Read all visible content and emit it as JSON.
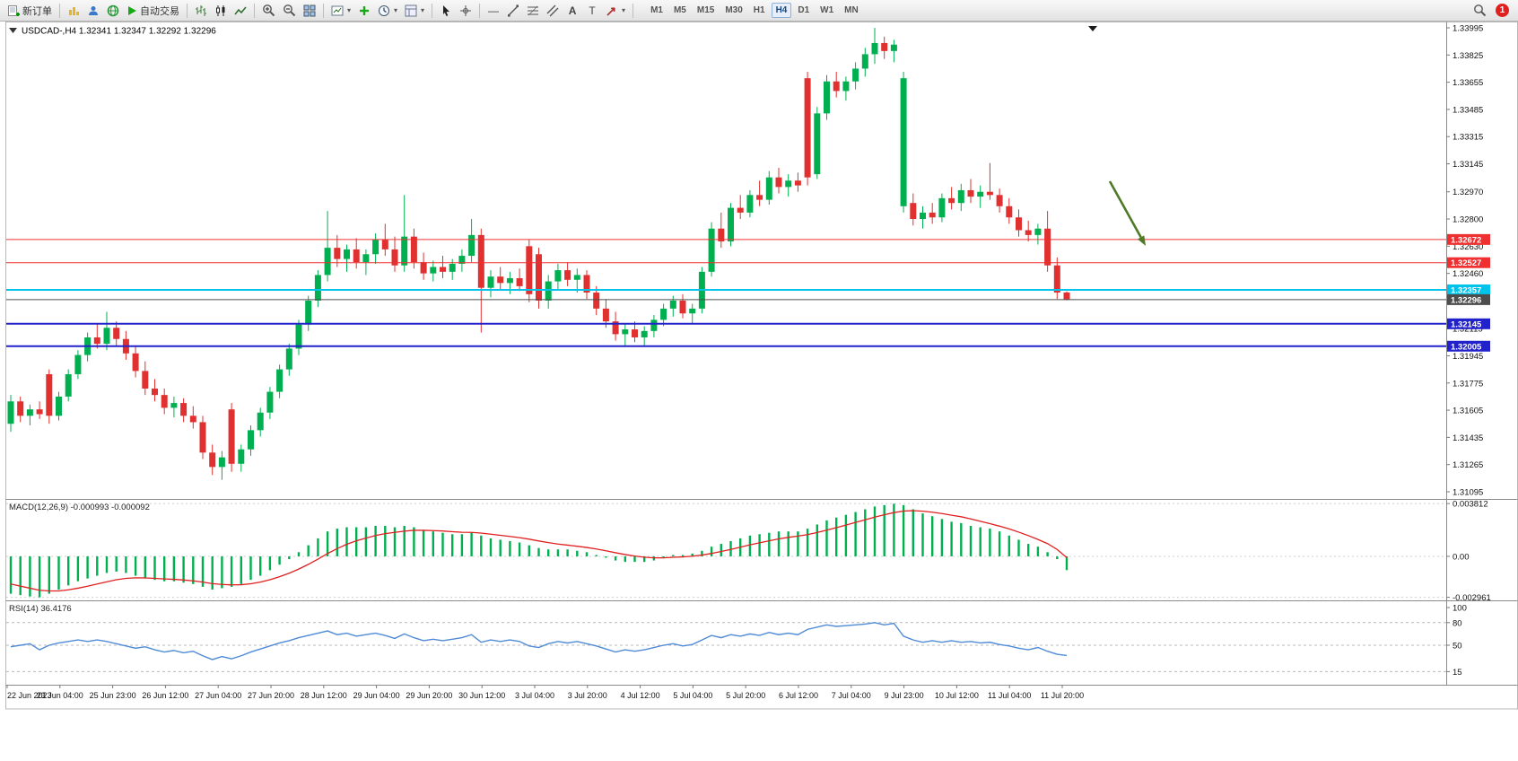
{
  "toolbar": {
    "new_order": "新订单",
    "auto_trading": "自动交易",
    "timeframes": [
      "M1",
      "M5",
      "M15",
      "M30",
      "H1",
      "H4",
      "D1",
      "W1",
      "MN"
    ],
    "active_timeframe": "H4",
    "notification_count": "1"
  },
  "chart_data": [
    {
      "type": "candlestick",
      "symbol": "USDCAD-,H4",
      "ohlc_text": "1.32341 1.32347 1.32292 1.32296",
      "ylim": [
        1.31095,
        1.33995
      ],
      "price_axis": [
        "1.33995",
        "1.33825",
        "1.33655",
        "1.33485",
        "1.33315",
        "1.33145",
        "1.32970",
        "1.32800",
        "1.32630",
        "1.32460",
        "1.32290",
        "1.32115",
        "1.31945",
        "1.31775",
        "1.31605",
        "1.31435",
        "1.31265",
        "1.31095"
      ],
      "hlines": [
        {
          "price": 1.32672,
          "label": "1.32672",
          "color": "#f03030",
          "width": 1
        },
        {
          "price": 1.32527,
          "label": "1.32527",
          "color": "#f03030",
          "width": 1
        },
        {
          "price": 1.32357,
          "label": "1.32357",
          "color": "#00c4ec",
          "width": 2
        },
        {
          "price": 1.32296,
          "label": "1.32296",
          "color": "#4d4d4d",
          "width": 1,
          "is_current_price": true
        },
        {
          "price": 1.32145,
          "label": "1.32145",
          "color": "#2222cc",
          "width": 2
        },
        {
          "price": 1.32005,
          "label": "1.32005",
          "color": "#2222cc",
          "width": 2
        }
      ],
      "colors": {
        "up": "#00b050",
        "down": "#e03030"
      },
      "annotations": [
        {
          "type": "arrow",
          "color": "#4e7a27",
          "from": [
            1237,
            202
          ],
          "to": [
            1277,
            274
          ]
        }
      ],
      "candles": [
        [
          1.3152,
          1.317,
          1.3147,
          1.3166
        ],
        [
          1.3166,
          1.3169,
          1.3153,
          1.3157
        ],
        [
          1.3157,
          1.3164,
          1.3151,
          1.3161
        ],
        [
          1.3161,
          1.3166,
          1.3155,
          1.3158
        ],
        [
          1.3183,
          1.3186,
          1.3152,
          1.3157
        ],
        [
          1.3157,
          1.3172,
          1.3154,
          1.3169
        ],
        [
          1.3169,
          1.3186,
          1.3166,
          1.3183
        ],
        [
          1.3183,
          1.3198,
          1.318,
          1.3195
        ],
        [
          1.3195,
          1.3209,
          1.3191,
          1.3206
        ],
        [
          1.3206,
          1.3215,
          1.3199,
          1.3202
        ],
        [
          1.3202,
          1.3222,
          1.3198,
          1.3212
        ],
        [
          1.3212,
          1.3216,
          1.3201,
          1.3205
        ],
        [
          1.3205,
          1.321,
          1.3192,
          1.3196
        ],
        [
          1.3196,
          1.3201,
          1.3181,
          1.3185
        ],
        [
          1.3185,
          1.3191,
          1.317,
          1.3174
        ],
        [
          1.3174,
          1.318,
          1.3166,
          1.317
        ],
        [
          1.317,
          1.3174,
          1.3158,
          1.3162
        ],
        [
          1.3162,
          1.3169,
          1.3156,
          1.3165
        ],
        [
          1.3165,
          1.3168,
          1.3153,
          1.3157
        ],
        [
          1.3157,
          1.3163,
          1.3149,
          1.3153
        ],
        [
          1.3153,
          1.3157,
          1.313,
          1.3134
        ],
        [
          1.3134,
          1.3139,
          1.312,
          1.3125
        ],
        [
          1.3125,
          1.3135,
          1.3117,
          1.3131
        ],
        [
          1.3161,
          1.3165,
          1.3122,
          1.3127
        ],
        [
          1.3127,
          1.3139,
          1.3122,
          1.3136
        ],
        [
          1.3136,
          1.3151,
          1.3132,
          1.3148
        ],
        [
          1.3148,
          1.3162,
          1.3144,
          1.3159
        ],
        [
          1.3159,
          1.3175,
          1.3155,
          1.3172
        ],
        [
          1.3172,
          1.3189,
          1.3168,
          1.3186
        ],
        [
          1.3186,
          1.3202,
          1.3182,
          1.3199
        ],
        [
          1.3199,
          1.3217,
          1.3195,
          1.3214
        ],
        [
          1.3214,
          1.3232,
          1.321,
          1.3229
        ],
        [
          1.3229,
          1.3248,
          1.3225,
          1.3245
        ],
        [
          1.3245,
          1.3285,
          1.3241,
          1.3262
        ],
        [
          1.3262,
          1.327,
          1.325,
          1.3255
        ],
        [
          1.3255,
          1.3264,
          1.3247,
          1.3261
        ],
        [
          1.3261,
          1.3268,
          1.3249,
          1.3253
        ],
        [
          1.3253,
          1.3261,
          1.3245,
          1.3258
        ],
        [
          1.3258,
          1.3271,
          1.3252,
          1.3267
        ],
        [
          1.3267,
          1.3277,
          1.3257,
          1.3261
        ],
        [
          1.3261,
          1.3269,
          1.3247,
          1.3251
        ],
        [
          1.3251,
          1.3295,
          1.3247,
          1.3269
        ],
        [
          1.3269,
          1.3274,
          1.3249,
          1.3253
        ],
        [
          1.3253,
          1.3259,
          1.3242,
          1.3246
        ],
        [
          1.3246,
          1.3254,
          1.3241,
          1.325
        ],
        [
          1.325,
          1.3257,
          1.3243,
          1.3247
        ],
        [
          1.3247,
          1.3255,
          1.3242,
          1.3252
        ],
        [
          1.3252,
          1.3261,
          1.3247,
          1.3257
        ],
        [
          1.3257,
          1.328,
          1.3253,
          1.327
        ],
        [
          1.327,
          1.3274,
          1.3209,
          1.3237
        ],
        [
          1.3237,
          1.3248,
          1.3231,
          1.3244
        ],
        [
          1.3244,
          1.325,
          1.3236,
          1.324
        ],
        [
          1.324,
          1.3247,
          1.3233,
          1.3243
        ],
        [
          1.3243,
          1.3249,
          1.3235,
          1.3238
        ],
        [
          1.3263,
          1.3267,
          1.3228,
          1.3233
        ],
        [
          1.3258,
          1.3262,
          1.3224,
          1.3229
        ],
        [
          1.3229,
          1.3245,
          1.3224,
          1.3241
        ],
        [
          1.3241,
          1.3252,
          1.3236,
          1.3248
        ],
        [
          1.3248,
          1.3253,
          1.3238,
          1.3242
        ],
        [
          1.3242,
          1.3249,
          1.3234,
          1.3245
        ],
        [
          1.3245,
          1.3248,
          1.323,
          1.3234
        ],
        [
          1.3234,
          1.3238,
          1.322,
          1.3224
        ],
        [
          1.3224,
          1.323,
          1.3212,
          1.3216
        ],
        [
          1.3216,
          1.3222,
          1.3204,
          1.3208
        ],
        [
          1.3208,
          1.3214,
          1.32,
          1.3211
        ],
        [
          1.3211,
          1.3216,
          1.3203,
          1.3206
        ],
        [
          1.3206,
          1.3213,
          1.3201,
          1.321
        ],
        [
          1.321,
          1.322,
          1.3206,
          1.3217
        ],
        [
          1.3217,
          1.3227,
          1.3213,
          1.3224
        ],
        [
          1.3224,
          1.3232,
          1.3219,
          1.3229
        ],
        [
          1.3229,
          1.3233,
          1.3218,
          1.3221
        ],
        [
          1.3221,
          1.3227,
          1.3215,
          1.3224
        ],
        [
          1.3224,
          1.325,
          1.3221,
          1.3247
        ],
        [
          1.3247,
          1.3278,
          1.3244,
          1.3274
        ],
        [
          1.3274,
          1.3284,
          1.3262,
          1.3266
        ],
        [
          1.3266,
          1.329,
          1.3263,
          1.3287
        ],
        [
          1.3287,
          1.3295,
          1.328,
          1.3284
        ],
        [
          1.3284,
          1.3298,
          1.3281,
          1.3295
        ],
        [
          1.3295,
          1.3304,
          1.3288,
          1.3292
        ],
        [
          1.3292,
          1.331,
          1.3289,
          1.3306
        ],
        [
          1.3306,
          1.3312,
          1.3296,
          1.33
        ],
        [
          1.33,
          1.3308,
          1.3294,
          1.3304
        ],
        [
          1.3304,
          1.3309,
          1.3297,
          1.3301
        ],
        [
          1.3368,
          1.3372,
          1.3301,
          1.3306
        ],
        [
          1.3308,
          1.335,
          1.3305,
          1.3346
        ],
        [
          1.3346,
          1.337,
          1.3342,
          1.3366
        ],
        [
          1.3366,
          1.3372,
          1.3356,
          1.336
        ],
        [
          1.336,
          1.3369,
          1.3354,
          1.3366
        ],
        [
          1.3366,
          1.3378,
          1.3361,
          1.3374
        ],
        [
          1.3374,
          1.3387,
          1.3369,
          1.3383
        ],
        [
          1.3383,
          1.33995,
          1.3377,
          1.339
        ],
        [
          1.339,
          1.3394,
          1.338,
          1.3385
        ],
        [
          1.3385,
          1.3392,
          1.3378,
          1.3389
        ],
        [
          1.3288,
          1.3372,
          1.3284,
          1.3368
        ],
        [
          1.329,
          1.3296,
          1.3276,
          1.328
        ],
        [
          1.328,
          1.3288,
          1.3274,
          1.3284
        ],
        [
          1.3284,
          1.329,
          1.3277,
          1.3281
        ],
        [
          1.3281,
          1.3296,
          1.3278,
          1.3293
        ],
        [
          1.3293,
          1.33,
          1.3286,
          1.329
        ],
        [
          1.329,
          1.3302,
          1.3285,
          1.3298
        ],
        [
          1.3298,
          1.3305,
          1.329,
          1.3294
        ],
        [
          1.3294,
          1.3301,
          1.3287,
          1.3297
        ],
        [
          1.3297,
          1.3315,
          1.3292,
          1.3295
        ],
        [
          1.3295,
          1.3299,
          1.3284,
          1.3288
        ],
        [
          1.3288,
          1.3293,
          1.3277,
          1.3281
        ],
        [
          1.3281,
          1.3286,
          1.3269,
          1.3273
        ],
        [
          1.3273,
          1.3279,
          1.3266,
          1.327
        ],
        [
          1.327,
          1.3277,
          1.3264,
          1.3274
        ],
        [
          1.3274,
          1.3285,
          1.3247,
          1.3251
        ],
        [
          1.3251,
          1.3256,
          1.323,
          1.3234
        ],
        [
          1.32341,
          1.32347,
          1.32292,
          1.32296
        ]
      ]
    },
    {
      "type": "macd-histogram",
      "label": "MACD(12,26,9)",
      "values_text": [
        "-0.000993",
        "-0.000092"
      ],
      "axis": [
        "0.003812",
        "0.00",
        "-0.002961"
      ],
      "ylim": [
        -0.00305,
        0.00395
      ],
      "colors": {
        "histogram": "#00b050",
        "signal": "#e02020"
      },
      "histogram": [
        -0.0027,
        -0.0028,
        -0.0029,
        -0.00296,
        -0.0027,
        -0.0024,
        -0.0021,
        -0.0018,
        -0.0016,
        -0.0014,
        -0.0012,
        -0.0011,
        -0.0012,
        -0.0014,
        -0.0016,
        -0.0017,
        -0.0018,
        -0.0018,
        -0.0019,
        -0.002,
        -0.0022,
        -0.0024,
        -0.0023,
        -0.0022,
        -0.002,
        -0.0017,
        -0.0014,
        -0.001,
        -0.0006,
        -0.0002,
        0.0003,
        0.0008,
        0.0013,
        0.0018,
        0.002,
        0.0021,
        0.0021,
        0.0021,
        0.0022,
        0.0022,
        0.0021,
        0.0022,
        0.0021,
        0.0019,
        0.0018,
        0.0017,
        0.0016,
        0.0016,
        0.0017,
        0.0015,
        0.0013,
        0.0012,
        0.0011,
        0.001,
        0.0008,
        0.0006,
        0.0005,
        0.0005,
        0.0005,
        0.0004,
        0.0003,
        0.0001,
        -0.0001,
        -0.0003,
        -0.0004,
        -0.0004,
        -0.0004,
        -0.0003,
        -0.0001,
        0.0001,
        0.0001,
        0.0002,
        0.0004,
        0.0007,
        0.0009,
        0.0011,
        0.0013,
        0.0015,
        0.0016,
        0.0017,
        0.0018,
        0.0018,
        0.0018,
        0.002,
        0.0023,
        0.0026,
        0.0028,
        0.003,
        0.0032,
        0.0034,
        0.0036,
        0.0037,
        0.0038,
        0.0037,
        0.0034,
        0.0031,
        0.0029,
        0.0027,
        0.0025,
        0.0024,
        0.0022,
        0.0021,
        0.002,
        0.0018,
        0.0015,
        0.0012,
        0.0009,
        0.0007,
        0.0003,
        -0.0002,
        -0.000993
      ],
      "signal": [
        -0.002,
        -0.00215,
        -0.0023,
        -0.00245,
        -0.0025,
        -0.0025,
        -0.00242,
        -0.0023,
        -0.00216,
        -0.002,
        -0.00184,
        -0.00169,
        -0.00159,
        -0.00155,
        -0.00156,
        -0.00159,
        -0.00163,
        -0.00166,
        -0.00171,
        -0.00177,
        -0.00186,
        -0.00197,
        -0.00203,
        -0.00206,
        -0.00205,
        -0.00198,
        -0.00186,
        -0.00169,
        -0.00147,
        -0.00122,
        -0.00092,
        -0.00058,
        -0.0002,
        0.0002,
        0.00056,
        0.00087,
        0.00112,
        0.00132,
        0.0015,
        0.00164,
        0.00173,
        0.00182,
        0.00188,
        0.00188,
        0.00186,
        0.00183,
        0.00178,
        0.00174,
        0.00173,
        0.00168,
        0.0016,
        0.00152,
        0.00144,
        0.00135,
        0.00124,
        0.00111,
        0.00099,
        0.00089,
        0.00081,
        0.00073,
        0.00064,
        0.00053,
        0.0004,
        0.00026,
        0.00013,
        2e-05,
        -6e-05,
        -0.00011,
        -0.00011,
        -7e-05,
        -4e-05,
        1e-05,
        9e-05,
        0.00021,
        0.00035,
        0.0005,
        0.00066,
        0.00083,
        0.00098,
        0.00112,
        0.00126,
        0.00137,
        0.00146,
        0.00157,
        0.00172,
        0.00189,
        0.00207,
        0.00226,
        0.00245,
        0.00264,
        0.00283,
        0.003,
        0.00316,
        0.00327,
        0.0033,
        0.00326,
        0.00319,
        0.00309,
        0.00297,
        0.00286,
        0.0027,
        0.00253,
        0.00236,
        0.00218,
        0.00198,
        0.00175,
        0.0015,
        0.00122,
        0.00092,
        0.0005,
        -9.2e-05
      ]
    },
    {
      "type": "rsi-line",
      "label": "RSI(14)",
      "value_text": "36.4176",
      "axis": [
        "100",
        "80",
        "50",
        "15"
      ],
      "levels": [
        80,
        50,
        15
      ],
      "ylim": [
        0,
        100
      ],
      "color": "#4f8bd6",
      "values": [
        48,
        50,
        52,
        44,
        50,
        53,
        55,
        57,
        55,
        57,
        55,
        52,
        49,
        46,
        48,
        44,
        41,
        43,
        40,
        42,
        36,
        31,
        35,
        32,
        36,
        41,
        45,
        49,
        53,
        56,
        60,
        63,
        66,
        69,
        64,
        66,
        62,
        64,
        66,
        63,
        59,
        65,
        60,
        56,
        58,
        56,
        58,
        60,
        64,
        54,
        57,
        55,
        57,
        55,
        49,
        47,
        52,
        55,
        53,
        55,
        52,
        49,
        45,
        41,
        44,
        42,
        44,
        47,
        50,
        52,
        49,
        51,
        57,
        63,
        60,
        64,
        62,
        65,
        63,
        67,
        64,
        66,
        64,
        71,
        74,
        77,
        75,
        76,
        77,
        78,
        80,
        77,
        79,
        62,
        57,
        54,
        56,
        54,
        56,
        54,
        55,
        53,
        54,
        51,
        49,
        46,
        44,
        47,
        42,
        38,
        36.4176
      ]
    }
  ],
  "time_axis": [
    "22 Jun 2023",
    "23 Jun 04:00",
    "25 Jun 23:00",
    "26 Jun 12:00",
    "27 Jun 04:00",
    "27 Jun 20:00",
    "28 Jun 12:00",
    "29 Jun 04:00",
    "29 Jun 20:00",
    "30 Jun 12:00",
    "3 Jul 04:00",
    "3 Jul 20:00",
    "4 Jul 12:00",
    "5 Jul 04:00",
    "5 Jul 20:00",
    "6 Jul 12:00",
    "7 Jul 04:00",
    "9 Jul 23:00",
    "10 Jul 12:00",
    "11 Jul 04:00",
    "11 Jul 20:00"
  ]
}
